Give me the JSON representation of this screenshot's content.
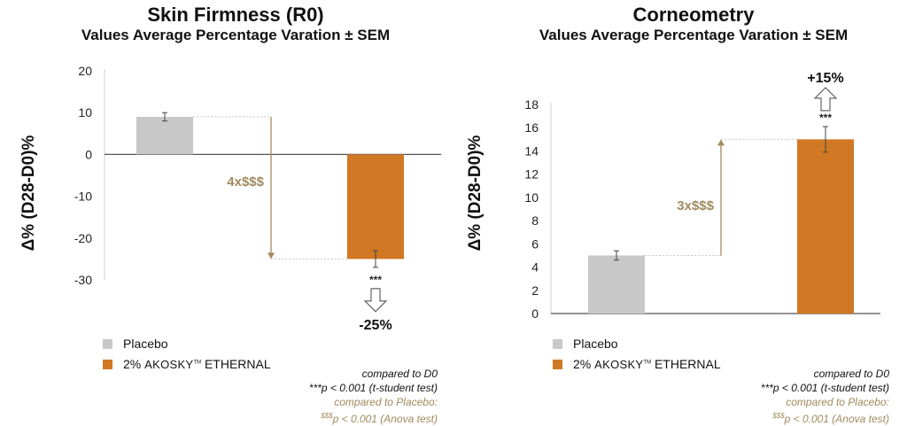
{
  "colors": {
    "placebo": "#c8c8c8",
    "treatment": "#d07823",
    "annotation": "#a08a5e",
    "axis": "#555555"
  },
  "legend": {
    "placebo_label": "Placebo",
    "treatment_prefix": "2%",
    "treatment_brand": "AKOSKY",
    "treatment_tm": "TM",
    "treatment_suffix": "ETHERNAL"
  },
  "notes": {
    "line1": "compared to D0",
    "line2_mark": "***",
    "line2_text": "p < 0.001 (t-student test)",
    "line3": "compared to Placebo:",
    "line4_mark": "$$$",
    "line4_text": "p < 0.001 (Anova test)"
  },
  "chart_data": [
    {
      "type": "bar",
      "title": "Skin Firmness (R0)",
      "subtitle": "Values Average Percentage Varation ± SEM",
      "ylabel": "Δ% (D28-D0)%",
      "categories": [
        "Placebo",
        "2% AKOSKY ETHERNAL"
      ],
      "values": [
        9,
        -25
      ],
      "sem": [
        1,
        2
      ],
      "ylim": [
        -30,
        20
      ],
      "yticks": [
        20,
        10,
        0,
        -10,
        -20,
        -30
      ],
      "significance": [
        "",
        "***"
      ],
      "comparison_label": "4x$$$",
      "change_label": "-25%",
      "change_direction": "down"
    },
    {
      "type": "bar",
      "title": "Corneometry",
      "subtitle": "Values Average Percentage Varation ± SEM",
      "ylabel": "Δ% (D28-D0)%",
      "categories": [
        "Placebo",
        "2% AKOSKY ETHERNAL"
      ],
      "values": [
        5,
        15
      ],
      "sem": [
        0.4,
        1.1
      ],
      "ylim": [
        0,
        18
      ],
      "yticks": [
        18,
        16,
        14,
        12,
        10,
        8,
        6,
        4,
        2,
        0
      ],
      "significance": [
        "",
        "***"
      ],
      "comparison_label": "3x$$$",
      "change_label": "+15%",
      "change_direction": "up"
    }
  ]
}
